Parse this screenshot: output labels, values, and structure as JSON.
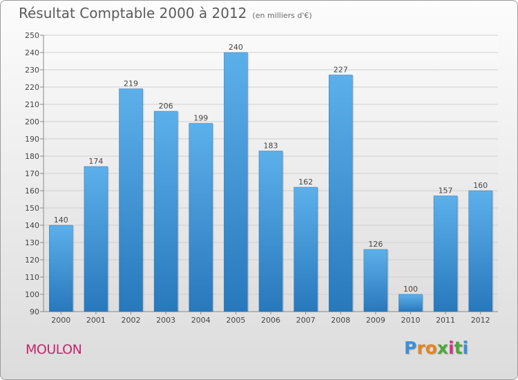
{
  "page": {
    "location": "MOULON",
    "brand": "Proxiti"
  },
  "colors": {
    "bar_top": "#5aaee8",
    "bar_bottom": "#2a7cc0",
    "text": "#444444",
    "location": "#c8246a"
  },
  "chart_data": {
    "type": "bar",
    "title": "Résultat Comptable 2000 à 2012",
    "subtitle": "(en milliers d'€)",
    "categories": [
      "2000",
      "2001",
      "2002",
      "2003",
      "2004",
      "2005",
      "2006",
      "2007",
      "2008",
      "2009",
      "2010",
      "2011",
      "2012"
    ],
    "values": [
      140,
      174,
      219,
      206,
      199,
      240,
      183,
      162,
      227,
      126,
      100,
      157,
      160
    ],
    "ylim": [
      90,
      250
    ],
    "yticks": [
      90,
      100,
      110,
      120,
      130,
      140,
      150,
      160,
      170,
      180,
      190,
      200,
      210,
      220,
      230,
      240,
      250
    ],
    "grid": true,
    "xlabel": "",
    "ylabel": ""
  }
}
